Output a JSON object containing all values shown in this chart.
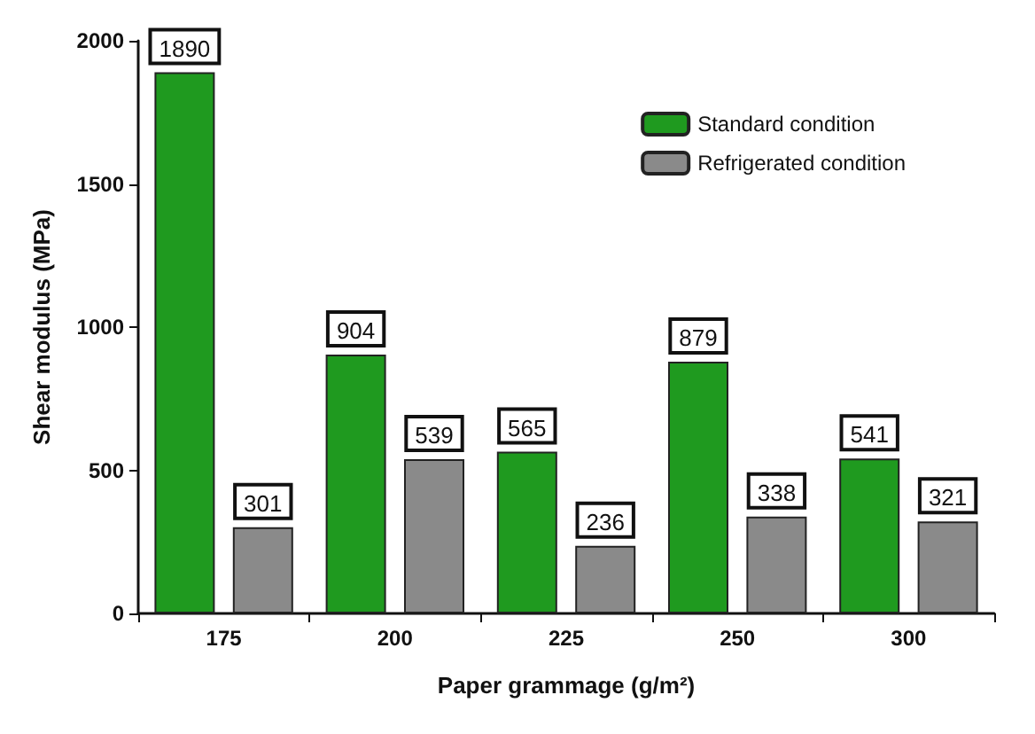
{
  "chart_data": {
    "type": "bar",
    "xlabel": "Paper grammage (g/m²)",
    "ylabel": "Shear modulus (MPa)",
    "categories": [
      "175",
      "200",
      "225",
      "250",
      "300"
    ],
    "series": [
      {
        "name": "Standard condition",
        "color": "#1f9a1f",
        "values": [
          1890,
          904,
          565,
          879,
          541
        ]
      },
      {
        "name": "Refrigerated condition",
        "color": "#8a8a8a",
        "values": [
          301,
          539,
          236,
          338,
          321
        ]
      }
    ],
    "ylim": [
      0,
      2000
    ],
    "yticks": [
      0,
      500,
      1000,
      1500,
      2000
    ],
    "grid": false,
    "legend": "top right",
    "data_labels": true
  }
}
